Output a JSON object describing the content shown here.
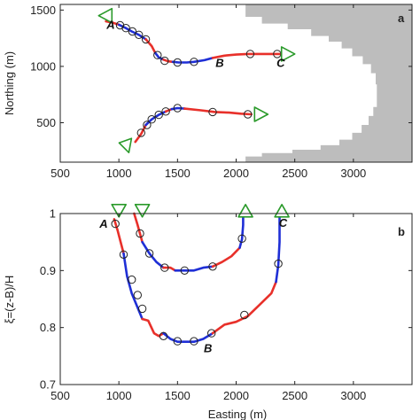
{
  "chart_data": [
    {
      "type": "line",
      "panel_label": "a",
      "xlabel": "",
      "ylabel": "Northing (m)",
      "xlim": [
        500,
        3500
      ],
      "ylim": [
        150,
        1550
      ],
      "xticks": [
        500,
        1000,
        1500,
        2000,
        2500,
        3000
      ],
      "xtick_labels": [
        "500",
        "1000",
        "1500",
        "2000",
        "2500",
        "3000"
      ],
      "yticks": [
        500,
        1000,
        1500
      ],
      "ytick_labels": [
        "500",
        "1000",
        "1500"
      ],
      "grid": false,
      "colors": {
        "red": "#e8302a",
        "blue": "#1f2fd6",
        "marker": "#222222",
        "triangle": "#2a9a2a",
        "land": "#bdbdbd"
      },
      "land_boundary": [
        [
          2080,
          1550
        ],
        [
          2080,
          1440
        ],
        [
          2220,
          1440
        ],
        [
          2220,
          1380
        ],
        [
          2440,
          1380
        ],
        [
          2440,
          1330
        ],
        [
          2640,
          1330
        ],
        [
          2640,
          1270
        ],
        [
          2790,
          1270
        ],
        [
          2790,
          1220
        ],
        [
          2900,
          1220
        ],
        [
          2900,
          1160
        ],
        [
          2990,
          1160
        ],
        [
          2990,
          1090
        ],
        [
          3080,
          1090
        ],
        [
          3080,
          1020
        ],
        [
          3150,
          1020
        ],
        [
          3150,
          940
        ],
        [
          3190,
          940
        ],
        [
          3190,
          840
        ],
        [
          3200,
          840
        ],
        [
          3200,
          640
        ],
        [
          3170,
          640
        ],
        [
          3170,
          560
        ],
        [
          3130,
          560
        ],
        [
          3130,
          480
        ],
        [
          3070,
          480
        ],
        [
          3070,
          410
        ],
        [
          2990,
          410
        ],
        [
          2990,
          350
        ],
        [
          2880,
          350
        ],
        [
          2880,
          300
        ],
        [
          2720,
          300
        ],
        [
          2720,
          260
        ],
        [
          2480,
          260
        ],
        [
          2480,
          230
        ],
        [
          2220,
          230
        ],
        [
          2220,
          200
        ],
        [
          2080,
          200
        ],
        [
          2080,
          150
        ],
        [
          3500,
          150
        ],
        [
          3500,
          1550
        ]
      ],
      "series": [
        {
          "segments": [
            {
              "color": "red",
              "x": [
                890,
                940,
                1000
              ],
              "y": [
                1400,
                1390,
                1370
              ]
            },
            {
              "color": "blue",
              "x": [
                1000,
                1060,
                1110,
                1170,
                1230
              ],
              "y": [
                1370,
                1340,
                1310,
                1280,
                1240
              ]
            },
            {
              "color": "red",
              "x": [
                1230,
                1280,
                1310
              ],
              "y": [
                1240,
                1180,
                1120
              ]
            },
            {
              "color": "blue",
              "x": [
                1310,
                1340,
                1380
              ],
              "y": [
                1120,
                1080,
                1060
              ]
            },
            {
              "color": "red",
              "x": [
                1380,
                1420,
                1460
              ],
              "y": [
                1060,
                1045,
                1040
              ]
            },
            {
              "color": "blue",
              "x": [
                1460,
                1510,
                1580,
                1640,
                1730,
                1800
              ],
              "y": [
                1040,
                1035,
                1035,
                1040,
                1055,
                1075
              ]
            },
            {
              "color": "red",
              "x": [
                1800,
                1900,
                2000,
                2100,
                2200,
                2290,
                2370
              ],
              "y": [
                1075,
                1095,
                1105,
                1110,
                1110,
                1110,
                1110
              ]
            }
          ],
          "markers": {
            "x": [
              1010,
              1060,
              1115,
              1170,
              1230,
              1330,
              1390,
              1500,
              1640,
              2120,
              2350
            ],
            "y": [
              1365,
              1340,
              1310,
              1280,
              1240,
              1100,
              1050,
              1035,
              1040,
              1110,
              1110
            ]
          },
          "start_triangle": [
            880,
            1450
          ],
          "end_triangle": [
            2440,
            1110
          ],
          "labels": [
            {
              "text": "A",
              "x": 930,
              "y": 1335
            },
            {
              "text": "B",
              "x": 1860,
              "y": 995
            },
            {
              "text": "C",
              "x": 2380,
              "y": 995
            }
          ]
        },
        {
          "segments": [
            {
              "color": "red",
              "x": [
                1140,
                1190,
                1230
              ],
              "y": [
                330,
                400,
                480
              ]
            },
            {
              "color": "blue",
              "x": [
                1230,
                1280,
                1340,
                1400
              ],
              "y": [
                480,
                530,
                570,
                600
              ]
            },
            {
              "color": "red",
              "x": [
                1400,
                1450
              ],
              "y": [
                600,
                620
              ]
            },
            {
              "color": "blue",
              "x": [
                1450,
                1500,
                1560
              ],
              "y": [
                620,
                630,
                625
              ]
            },
            {
              "color": "red",
              "x": [
                1560,
                1700,
                1820,
                1940,
                2040,
                2130
              ],
              "y": [
                625,
                610,
                595,
                590,
                580,
                575
              ]
            }
          ],
          "markers": {
            "x": [
              1190,
              1240,
              1280,
              1340,
              1400,
              1500,
              1800,
              2100
            ],
            "y": [
              410,
              480,
              530,
              570,
              600,
              630,
              595,
              575
            ]
          },
          "start_triangle": [
            1070,
            290
          ],
          "end_triangle": [
            2210,
            575
          ],
          "labels": []
        }
      ]
    },
    {
      "type": "line",
      "panel_label": "b",
      "xlabel": "Easting (m)",
      "ylabel": "ξ=(z-B)/H",
      "xlim": [
        500,
        3500
      ],
      "ylim": [
        0.7,
        1.0
      ],
      "xticks": [
        500,
        1000,
        1500,
        2000,
        2500,
        3000
      ],
      "xtick_labels": [
        "500",
        "1000",
        "1500",
        "2000",
        "2500",
        "3000"
      ],
      "yticks": [
        0.7,
        0.8,
        0.9,
        1.0
      ],
      "ytick_labels": [
        "0.7",
        "0.8",
        "0.9",
        "1"
      ],
      "grid": false,
      "colors": {
        "red": "#e8302a",
        "blue": "#1f2fd6",
        "marker": "#222222",
        "triangle": "#2a9a2a"
      },
      "series": [
        {
          "segments": [
            {
              "color": "red",
              "x": [
                960,
                990,
                1040
              ],
              "y": [
                0.99,
                0.97,
                0.93
              ]
            },
            {
              "color": "blue",
              "x": [
                1040,
                1070,
                1110,
                1160,
                1200
              ],
              "y": [
                0.93,
                0.89,
                0.86,
                0.835,
                0.815
              ]
            },
            {
              "color": "red",
              "x": [
                1200,
                1250,
                1300,
                1340,
                1380
              ],
              "y": [
                0.815,
                0.812,
                0.79,
                0.785,
                0.79
              ]
            },
            {
              "color": "blue",
              "x": [
                1380,
                1440,
                1500,
                1560,
                1640,
                1720,
                1800
              ],
              "y": [
                0.79,
                0.78,
                0.775,
                0.775,
                0.775,
                0.78,
                0.79
              ]
            },
            {
              "color": "red",
              "x": [
                1800,
                1900,
                2000,
                2100,
                2200,
                2300,
                2340
              ],
              "y": [
                0.79,
                0.805,
                0.81,
                0.82,
                0.84,
                0.86,
                0.88
              ]
            },
            {
              "color": "blue",
              "x": [
                2340,
                2360,
                2370,
                2370
              ],
              "y": [
                0.88,
                0.91,
                0.95,
                1.0
              ]
            }
          ],
          "markers": {
            "x": [
              970,
              1040,
              1110,
              1160,
              1200,
              1380,
              1500,
              1640,
              1790,
              2070,
              2360
            ],
            "y": [
              0.982,
              0.928,
              0.884,
              0.857,
              0.833,
              0.785,
              0.776,
              0.776,
              0.79,
              0.822,
              0.912
            ]
          },
          "start_triangle": [
            1000,
            1.005
          ],
          "end_triangle": [
            2390,
            1.005
          ],
          "labels": [
            {
              "text": "A",
              "x": 870,
              "y": 0.975
            },
            {
              "text": "B",
              "x": 1760,
              "y": 0.757
            },
            {
              "text": "C",
              "x": 2400,
              "y": 0.977
            }
          ]
        },
        {
          "segments": [
            {
              "color": "red",
              "x": [
                1130,
                1160,
                1200
              ],
              "y": [
                1.0,
                0.98,
                0.95
              ]
            },
            {
              "color": "blue",
              "x": [
                1200,
                1260,
                1320,
                1380
              ],
              "y": [
                0.95,
                0.93,
                0.915,
                0.905
              ]
            },
            {
              "color": "red",
              "x": [
                1380,
                1440,
                1480
              ],
              "y": [
                0.905,
                0.905,
                0.9
              ]
            },
            {
              "color": "blue",
              "x": [
                1480,
                1560,
                1640,
                1720,
                1800
              ],
              "y": [
                0.9,
                0.9,
                0.9,
                0.905,
                0.907
              ]
            },
            {
              "color": "red",
              "x": [
                1800,
                1880,
                1960,
                2030
              ],
              "y": [
                0.907,
                0.915,
                0.925,
                0.94
              ]
            },
            {
              "color": "blue",
              "x": [
                2030,
                2050,
                2060,
                2060
              ],
              "y": [
                0.94,
                0.955,
                0.98,
                1.0
              ]
            }
          ],
          "markers": {
            "x": [
              1180,
              1260,
              1390,
              1560,
              1800,
              2050
            ],
            "y": [
              0.965,
              0.93,
              0.905,
              0.9,
              0.907,
              0.956
            ]
          },
          "start_triangle": [
            1200,
            1.005
          ],
          "end_triangle": [
            2080,
            1.005
          ],
          "labels": []
        }
      ]
    }
  ]
}
